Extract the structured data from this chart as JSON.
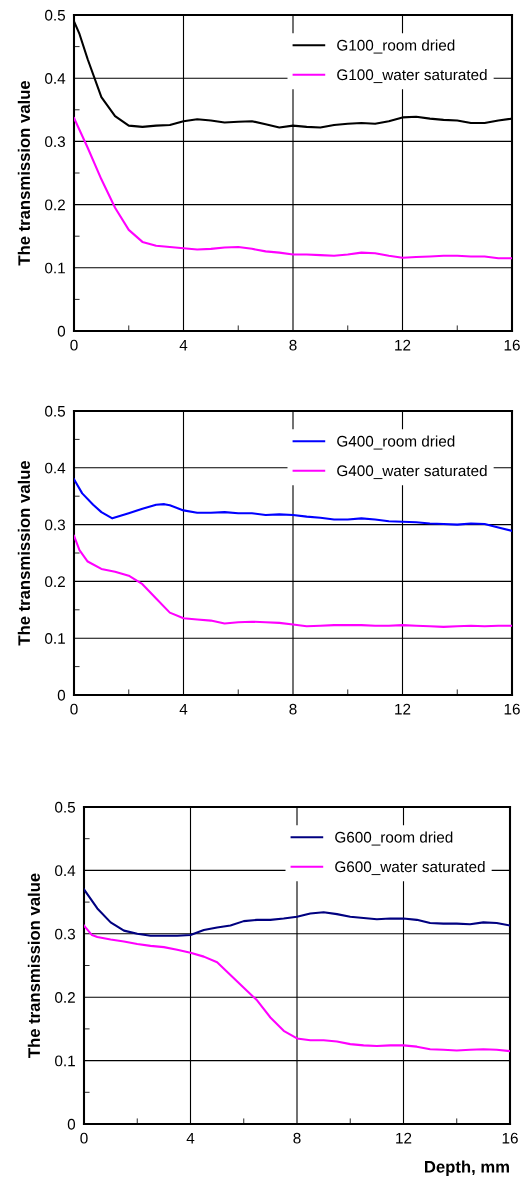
{
  "chart_data": [
    {
      "type": "line",
      "ylabel": "The transmission value",
      "xlim": [
        0,
        16
      ],
      "ylim": [
        0,
        0.5
      ],
      "xticks": [
        0,
        {
          "value": 2,
          "label": null
        },
        4,
        {
          "value": 6,
          "label": null
        },
        8,
        {
          "value": 10,
          "label": null
        },
        12,
        {
          "value": 14,
          "label": null
        },
        16
      ],
      "yticks": [
        0,
        {
          "value": 0.05,
          "label": null
        },
        0.1,
        {
          "value": 0.15,
          "label": null
        },
        0.2,
        {
          "value": 0.25,
          "label": null
        },
        0.3,
        {
          "value": 0.35,
          "label": null
        },
        0.4,
        {
          "value": 0.45,
          "label": null
        },
        0.5
      ],
      "grid": true,
      "legend": "top right",
      "line_style": "solid",
      "marker": "none",
      "series": [
        {
          "name": "G100_room dried",
          "color": "#000000",
          "x": [
            0,
            0.2,
            0.5,
            1,
            1.5,
            2,
            2.5,
            3,
            3.5,
            4,
            4.5,
            5,
            5.5,
            6,
            6.5,
            7,
            7.5,
            8,
            8.5,
            9,
            9.5,
            10,
            10.5,
            11,
            11.5,
            12,
            12.5,
            13,
            13.5,
            14,
            14.5,
            15,
            15.5,
            16
          ],
          "values": [
            0.49,
            0.47,
            0.43,
            0.37,
            0.34,
            0.325,
            0.323,
            0.325,
            0.326,
            0.332,
            0.335,
            0.333,
            0.33,
            0.331,
            0.332,
            0.327,
            0.322,
            0.325,
            0.323,
            0.322,
            0.326,
            0.328,
            0.329,
            0.328,
            0.332,
            0.338,
            0.339,
            0.336,
            0.334,
            0.333,
            0.329,
            0.329,
            0.333,
            0.336
          ]
        },
        {
          "name": "G100_water saturated",
          "color": "#ff00ff",
          "x": [
            0,
            0.5,
            1,
            1.5,
            2,
            2.5,
            3,
            3.5,
            4,
            4.5,
            5,
            5.5,
            6,
            6.5,
            7,
            7.5,
            8,
            8.5,
            9,
            9.5,
            10,
            10.5,
            11,
            11.5,
            12,
            12.5,
            13,
            13.5,
            14,
            14.5,
            15,
            15.5,
            16
          ],
          "values": [
            0.337,
            0.29,
            0.24,
            0.195,
            0.16,
            0.141,
            0.135,
            0.133,
            0.131,
            0.129,
            0.13,
            0.132,
            0.133,
            0.13,
            0.126,
            0.124,
            0.121,
            0.121,
            0.12,
            0.119,
            0.121,
            0.124,
            0.123,
            0.119,
            0.116,
            0.117,
            0.118,
            0.119,
            0.119,
            0.118,
            0.118,
            0.115,
            0.115
          ]
        }
      ]
    },
    {
      "type": "line",
      "ylabel": "The transmission value",
      "xlim": [
        0,
        16
      ],
      "ylim": [
        0,
        0.5
      ],
      "xticks": [
        0,
        {
          "value": 2,
          "label": null
        },
        4,
        {
          "value": 6,
          "label": null
        },
        8,
        {
          "value": 10,
          "label": null
        },
        12,
        {
          "value": 14,
          "label": null
        },
        16
      ],
      "yticks": [
        0,
        {
          "value": 0.05,
          "label": null
        },
        0.1,
        {
          "value": 0.15,
          "label": null
        },
        0.2,
        {
          "value": 0.25,
          "label": null
        },
        0.3,
        {
          "value": 0.35,
          "label": null
        },
        0.4,
        {
          "value": 0.45,
          "label": null
        },
        0.5
      ],
      "grid": true,
      "legend": "top right",
      "line_style": "solid",
      "marker": "none",
      "series": [
        {
          "name": "G400_room dried",
          "color": "#0000ff",
          "x": [
            0,
            0.3,
            0.7,
            1,
            1.4,
            2,
            2.5,
            3,
            3.3,
            3.5,
            4,
            4.5,
            5,
            5.5,
            6,
            6.5,
            7,
            7.5,
            8,
            8.5,
            9,
            9.5,
            10,
            10.5,
            11,
            11.5,
            12,
            12.5,
            13,
            13.5,
            14,
            14.5,
            15,
            15.5,
            16
          ],
          "values": [
            0.38,
            0.355,
            0.335,
            0.322,
            0.311,
            0.32,
            0.328,
            0.335,
            0.336,
            0.334,
            0.325,
            0.321,
            0.321,
            0.322,
            0.32,
            0.32,
            0.317,
            0.318,
            0.317,
            0.314,
            0.312,
            0.309,
            0.309,
            0.311,
            0.309,
            0.306,
            0.305,
            0.304,
            0.302,
            0.301,
            0.3,
            0.302,
            0.301,
            0.295,
            0.289
          ]
        },
        {
          "name": "G400_water saturated",
          "color": "#ff00ff",
          "x": [
            0,
            0.2,
            0.5,
            1,
            1.5,
            2,
            2.5,
            3,
            3.5,
            4,
            4.5,
            5,
            5.5,
            6,
            6.5,
            7,
            7.5,
            8,
            8.5,
            9,
            9.5,
            10,
            10.5,
            11,
            11.5,
            12,
            12.5,
            13,
            13.5,
            14,
            14.5,
            15,
            15.5,
            16
          ],
          "values": [
            0.28,
            0.255,
            0.235,
            0.222,
            0.217,
            0.21,
            0.195,
            0.17,
            0.145,
            0.135,
            0.133,
            0.131,
            0.126,
            0.128,
            0.129,
            0.128,
            0.127,
            0.124,
            0.121,
            0.122,
            0.123,
            0.123,
            0.123,
            0.122,
            0.122,
            0.123,
            0.122,
            0.121,
            0.12,
            0.121,
            0.122,
            0.121,
            0.122,
            0.122
          ]
        }
      ]
    },
    {
      "type": "line",
      "ylabel": "The transmission value",
      "xlabel": "Depth, mm",
      "xlim": [
        0,
        16
      ],
      "ylim": [
        0,
        0.5
      ],
      "xticks": [
        0,
        {
          "value": 2,
          "label": null
        },
        4,
        {
          "value": 6,
          "label": null
        },
        8,
        {
          "value": 10,
          "label": null
        },
        12,
        {
          "value": 14,
          "label": null
        },
        16
      ],
      "yticks": [
        0,
        {
          "value": 0.05,
          "label": null
        },
        0.1,
        {
          "value": 0.15,
          "label": null
        },
        0.2,
        {
          "value": 0.25,
          "label": null
        },
        0.3,
        {
          "value": 0.35,
          "label": null
        },
        0.4,
        {
          "value": 0.45,
          "label": null
        },
        0.5
      ],
      "grid": true,
      "legend": "top right",
      "line_style": "solid",
      "marker": "none",
      "series": [
        {
          "name": "G600_room dried",
          "color": "#000080",
          "x": [
            0,
            0.5,
            1,
            1.5,
            2,
            2.5,
            3,
            3.5,
            4,
            4.5,
            5,
            5.5,
            6,
            6.5,
            7,
            7.5,
            8,
            8.5,
            9,
            9.5,
            10,
            10.5,
            11,
            11.5,
            12,
            12.5,
            13,
            13.5,
            14,
            14.5,
            15,
            15.5,
            16
          ],
          "values": [
            0.37,
            0.34,
            0.318,
            0.305,
            0.3,
            0.297,
            0.297,
            0.297,
            0.298,
            0.306,
            0.31,
            0.313,
            0.32,
            0.322,
            0.322,
            0.324,
            0.327,
            0.332,
            0.334,
            0.331,
            0.327,
            0.325,
            0.323,
            0.324,
            0.324,
            0.322,
            0.317,
            0.316,
            0.316,
            0.315,
            0.318,
            0.317,
            0.313
          ]
        },
        {
          "name": "G600_water saturated",
          "color": "#ff00ff",
          "x": [
            0,
            0.3,
            0.5,
            1,
            1.5,
            2,
            2.5,
            3,
            3.5,
            4,
            4.5,
            5,
            5.5,
            6,
            6.5,
            7,
            7.5,
            8,
            8.5,
            9,
            9.5,
            10,
            10.5,
            11,
            11.5,
            12,
            12.5,
            13,
            13.5,
            14,
            14.5,
            15,
            15.5,
            16
          ],
          "values": [
            0.313,
            0.298,
            0.295,
            0.291,
            0.288,
            0.284,
            0.281,
            0.279,
            0.275,
            0.27,
            0.264,
            0.255,
            0.235,
            0.215,
            0.195,
            0.168,
            0.147,
            0.135,
            0.132,
            0.132,
            0.13,
            0.126,
            0.124,
            0.123,
            0.124,
            0.124,
            0.122,
            0.118,
            0.117,
            0.116,
            0.117,
            0.118,
            0.117,
            0.115
          ]
        }
      ]
    }
  ]
}
